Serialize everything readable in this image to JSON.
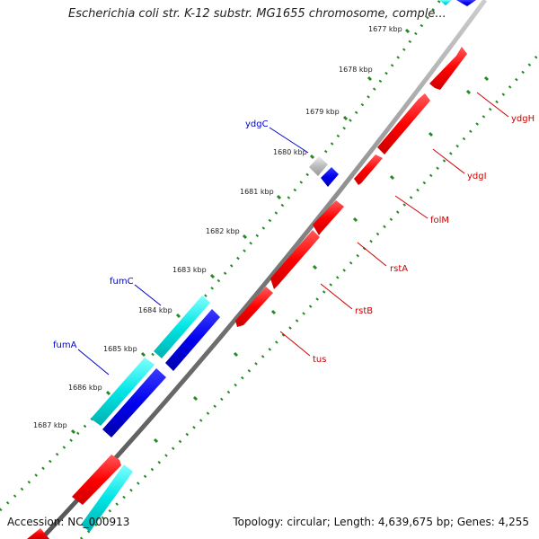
{
  "title": "Escherichia coli str. K-12 substr. MG1655 chromosome, comple...",
  "footer": {
    "accession": "Accession: NC_000913",
    "summary": "Topology: circular; Length: 4,639,675 bp; Genes: 4,255"
  },
  "colors": {
    "forward_gene": "#ff0000",
    "reverse_gene": "#0000ee",
    "cyan_gene": "#00e5e5",
    "gray_gene": "#bbbbbb",
    "backbone": "#777777",
    "tick": "#228b22",
    "forward_label": "#cc0000",
    "reverse_label": "#0000cc"
  },
  "ticks": [
    "1677 kbp",
    "1678 kbp",
    "1679 kbp",
    "1680 kbp",
    "1681 kbp",
    "1682 kbp",
    "1683 kbp",
    "1684 kbp",
    "1685 kbp",
    "1686 kbp",
    "1687 kbp"
  ],
  "gene_labels": {
    "ydgH": "ydgH",
    "ydgI": "ydgI",
    "folM": "folM",
    "rstA": "rstA",
    "rstB": "rstB",
    "tus": "tus",
    "ydgC": "ydgC",
    "fumC": "fumC",
    "fumA": "fumA"
  }
}
